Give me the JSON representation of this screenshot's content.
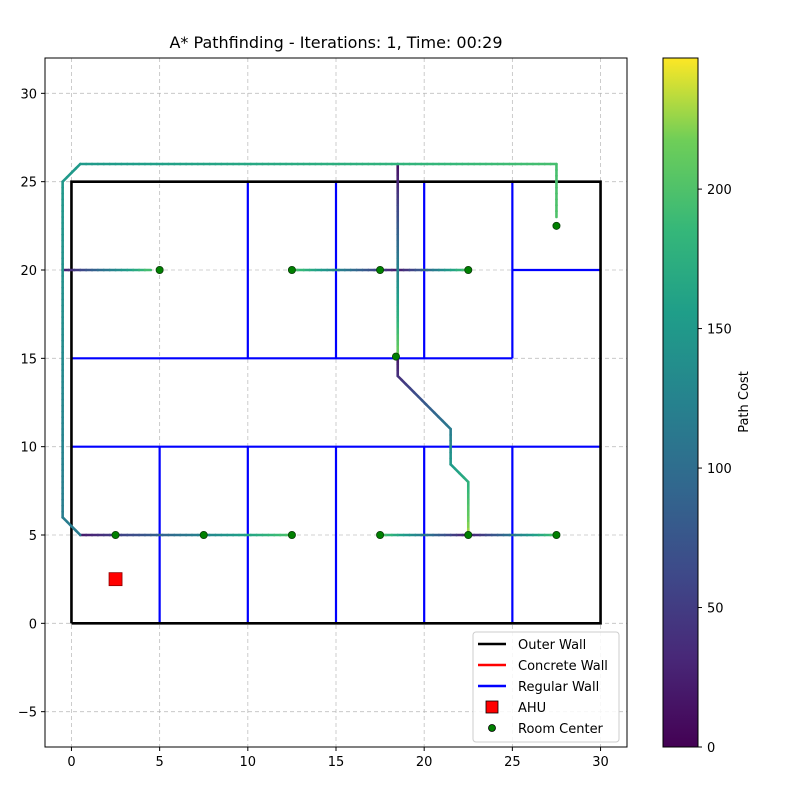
{
  "chart_data": {
    "type": "line",
    "title": "A* Pathfinding - Iterations: 1, Time: 00:29",
    "xlabel": "",
    "ylabel": "",
    "xlim": [
      -1.5,
      31.5
    ],
    "ylim": [
      -7,
      32
    ],
    "xticks": [
      0,
      5,
      10,
      15,
      20,
      25,
      30
    ],
    "yticks": [
      -5,
      0,
      5,
      10,
      15,
      20,
      25,
      30
    ],
    "grid": true,
    "legend_position": "bottom-right",
    "legend": [
      {
        "label": "Outer Wall",
        "kind": "line",
        "color": "#000000"
      },
      {
        "label": "Concrete Wall",
        "kind": "line",
        "color": "#ff0000"
      },
      {
        "label": "Regular Wall",
        "kind": "line",
        "color": "#0000ff"
      },
      {
        "label": "AHU",
        "kind": "square",
        "color": "#ff0000"
      },
      {
        "label": "Room Center",
        "kind": "circle",
        "color": "#008000"
      }
    ],
    "colorbar": {
      "label": "Path Cost",
      "colormap": "viridis",
      "range": [
        0,
        247
      ],
      "ticks": [
        0,
        50,
        100,
        150,
        200
      ]
    },
    "outer_wall": [
      [
        0,
        0
      ],
      [
        30,
        0
      ],
      [
        30,
        25
      ],
      [
        0,
        25
      ],
      [
        0,
        0
      ]
    ],
    "regular_walls": [
      [
        [
          10,
          15
        ],
        [
          10,
          25
        ]
      ],
      [
        [
          15,
          15
        ],
        [
          15,
          25
        ]
      ],
      [
        [
          20,
          15
        ],
        [
          20,
          25
        ]
      ],
      [
        [
          25,
          15
        ],
        [
          25,
          25
        ]
      ],
      [
        [
          0,
          15
        ],
        [
          25,
          15
        ]
      ],
      [
        [
          25,
          20
        ],
        [
          30,
          20
        ]
      ],
      [
        [
          0,
          10
        ],
        [
          30,
          10
        ]
      ],
      [
        [
          5,
          0
        ],
        [
          5,
          10
        ]
      ],
      [
        [
          10,
          0
        ],
        [
          10,
          10
        ]
      ],
      [
        [
          15,
          0
        ],
        [
          15,
          10
        ]
      ],
      [
        [
          20,
          0
        ],
        [
          20,
          10
        ]
      ],
      [
        [
          25,
          0
        ],
        [
          25,
          10
        ]
      ]
    ],
    "ahu": [
      2.5,
      2.5
    ],
    "room_centers": [
      [
        5,
        20
      ],
      [
        12.5,
        20
      ],
      [
        17.5,
        20
      ],
      [
        22.5,
        20
      ],
      [
        27.5,
        22.5
      ],
      [
        18.4,
        15.1
      ],
      [
        2.5,
        5
      ],
      [
        7.5,
        5
      ],
      [
        12.5,
        5
      ],
      [
        17.5,
        5
      ],
      [
        22.5,
        5
      ],
      [
        27.5,
        5
      ]
    ],
    "paths": [
      {
        "points": [
          [
            -0.5,
            20
          ],
          [
            4.5,
            20
          ]
        ],
        "cost": [
          20,
          200
        ]
      },
      {
        "points": [
          [
            18.5,
            20
          ],
          [
            12.5,
            20
          ]
        ],
        "cost": [
          20,
          200
        ]
      },
      {
        "points": [
          [
            18.5,
            20
          ],
          [
            22.5,
            20
          ]
        ],
        "cost": [
          20,
          200
        ]
      },
      {
        "points": [
          [
            18.5,
            26
          ],
          [
            18.5,
            15
          ]
        ],
        "cost": [
          10,
          220
        ]
      },
      {
        "points": [
          [
            18.5,
            15
          ],
          [
            18.5,
            14
          ],
          [
            21.5,
            11
          ],
          [
            21.5,
            9
          ],
          [
            22.5,
            8
          ],
          [
            22.5,
            5
          ]
        ],
        "cost": [
          20,
          230
        ]
      },
      {
        "points": [
          [
            22.5,
            5
          ],
          [
            17.5,
            5
          ]
        ],
        "cost": [
          20,
          200
        ]
      },
      {
        "points": [
          [
            22.5,
            5
          ],
          [
            27.5,
            5
          ]
        ],
        "cost": [
          20,
          200
        ]
      },
      {
        "points": [
          [
            0.5,
            5
          ],
          [
            12.5,
            5
          ]
        ],
        "cost": [
          20,
          200
        ]
      },
      {
        "points": [
          [
            0.5,
            5
          ],
          [
            -0.5,
            6
          ],
          [
            -0.5,
            25
          ],
          [
            0.5,
            26
          ],
          [
            27.5,
            26
          ],
          [
            27.5,
            23
          ]
        ],
        "cost": [
          115,
          200
        ]
      }
    ]
  }
}
